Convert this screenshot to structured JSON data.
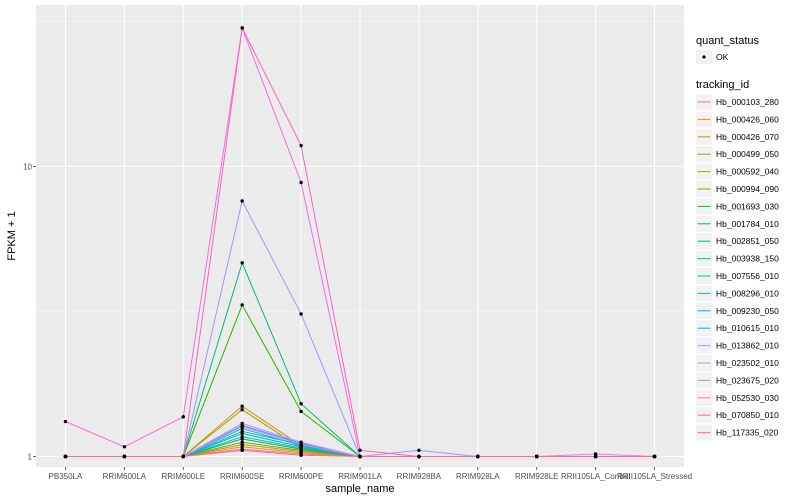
{
  "chart_data": {
    "type": "line",
    "x_axis_title": "sample_name",
    "y_axis_title": "FPKM + 1",
    "y_scale": "log10",
    "y_ticks": [
      1,
      10
    ],
    "y_tick_labels": [
      "1 -",
      "10 -"
    ],
    "ylim": [
      0.92,
      36
    ],
    "categories": [
      "PB350LA",
      "RRIM600LA",
      "RRIM600LE",
      "RRIM600SE",
      "RRIM600PE",
      "RRIM901LA",
      "RRIM928BA",
      "RRIM928LA",
      "RRIM928LE",
      "RRII105LA_Control",
      "RRII105LA_Stressed"
    ],
    "grid": true,
    "legend_position": "right",
    "legend": {
      "shape_title": "quant_status",
      "shape_entries": [
        "OK"
      ],
      "color_title": "tracking_id"
    },
    "series": [
      {
        "name": "Hb_000103_280",
        "color": "#F8766D",
        "values": [
          1,
          1,
          1,
          1.06,
          1.02,
          1,
          1,
          1,
          1,
          1,
          1
        ]
      },
      {
        "name": "Hb_000426_060",
        "color": "#E98A31",
        "values": [
          1,
          1,
          1,
          1.08,
          1.03,
          1,
          1,
          1,
          1,
          1,
          1
        ]
      },
      {
        "name": "Hb_000426_070",
        "color": "#D49200",
        "values": [
          1,
          1,
          1,
          1.49,
          1.09,
          1,
          1,
          1,
          1,
          1,
          1
        ]
      },
      {
        "name": "Hb_000499_050",
        "color": "#BB9D00",
        "values": [
          1,
          1,
          1,
          1.1,
          1.04,
          1,
          1,
          1,
          1,
          1,
          1
        ]
      },
      {
        "name": "Hb_000592_040",
        "color": "#9CA700",
        "values": [
          1,
          1,
          1,
          1.45,
          1.07,
          1,
          1,
          1,
          1,
          1,
          1
        ]
      },
      {
        "name": "Hb_000994_090",
        "color": "#6FB000",
        "values": [
          1,
          1,
          1,
          1.12,
          1.05,
          1,
          1,
          1,
          1,
          1,
          1
        ]
      },
      {
        "name": "Hb_001693_030",
        "color": "#27B400",
        "values": [
          1,
          1,
          1,
          3.33,
          1.43,
          1,
          1,
          1,
          1,
          1,
          1
        ]
      },
      {
        "name": "Hb_001784_010",
        "color": "#00B74A",
        "values": [
          1,
          1,
          1,
          1.15,
          1.06,
          1,
          1,
          1,
          1,
          1,
          1
        ]
      },
      {
        "name": "Hb_002851_050",
        "color": "#00BA7A",
        "values": [
          1,
          1,
          1,
          4.65,
          1.52,
          1,
          1,
          1,
          1,
          1,
          1
        ]
      },
      {
        "name": "Hb_003938_150",
        "color": "#00BD9E",
        "values": [
          1,
          1,
          1,
          1.2,
          1.08,
          1,
          1,
          1,
          1,
          1,
          1
        ]
      },
      {
        "name": "Hb_007556_010",
        "color": "#00BFC0",
        "values": [
          1,
          1,
          1,
          1.25,
          1.09,
          1,
          1,
          1,
          1,
          1,
          1
        ]
      },
      {
        "name": "Hb_008296_010",
        "color": "#00BDDF",
        "values": [
          1,
          1,
          1,
          1.22,
          1.1,
          1,
          1,
          1,
          1,
          1,
          1
        ]
      },
      {
        "name": "Hb_009230_050",
        "color": "#00B5F5",
        "values": [
          1,
          1,
          1,
          1.17,
          1.07,
          1,
          1,
          1,
          1,
          1,
          1
        ]
      },
      {
        "name": "Hb_010615_010",
        "color": "#1EA8FF",
        "values": [
          1,
          1,
          1,
          1.28,
          1.11,
          1,
          1,
          1,
          1,
          1,
          1
        ]
      },
      {
        "name": "Hb_013862_010",
        "color": "#9A9BFF",
        "values": [
          1,
          1,
          1,
          7.6,
          3.1,
          1,
          1.05,
          1,
          1,
          1,
          1
        ]
      },
      {
        "name": "Hb_023502_010",
        "color": "#C889FF",
        "values": [
          1,
          1,
          1,
          1.3,
          1.12,
          1,
          1,
          1,
          1,
          1,
          1
        ]
      },
      {
        "name": "Hb_023675_020",
        "color": "#E77BF3",
        "values": [
          1,
          1,
          1,
          1.27,
          1.1,
          1,
          1,
          1,
          1,
          1.02,
          1
        ]
      },
      {
        "name": "Hb_052530_030",
        "color": "#F76BE0",
        "values": [
          1.32,
          1.08,
          1.37,
          30,
          8.8,
          1,
          1,
          1,
          1,
          1,
          1
        ]
      },
      {
        "name": "Hb_070850_010",
        "color": "#FF62BC",
        "values": [
          1,
          1,
          1,
          30,
          11.8,
          1.05,
          1,
          1,
          1,
          1,
          1
        ]
      },
      {
        "name": "Hb_117335_020",
        "color": "#FF6C91",
        "values": [
          1,
          1,
          1,
          1.05,
          1.01,
          1,
          1,
          1,
          1,
          1,
          1
        ]
      }
    ]
  }
}
